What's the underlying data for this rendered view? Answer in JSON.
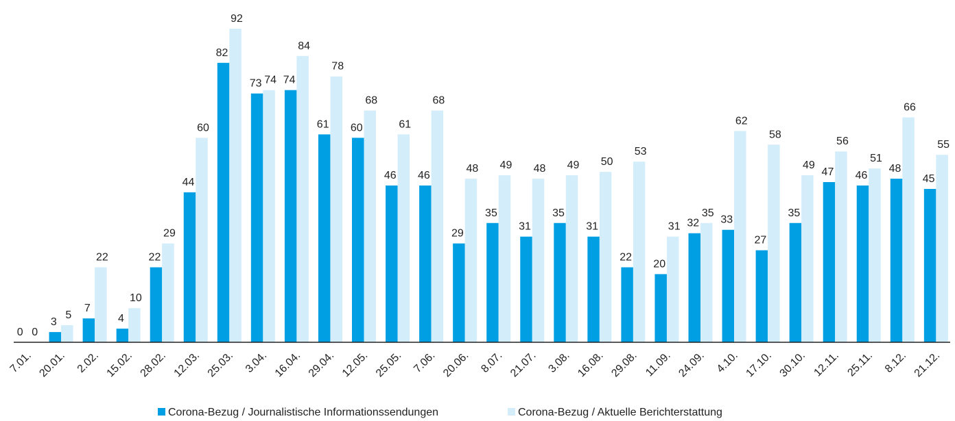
{
  "chart_data": {
    "type": "bar",
    "categories": [
      "7.01.",
      "20.01.",
      "2.02.",
      "15.02.",
      "28.02.",
      "12.03.",
      "25.03.",
      "3.04.",
      "16.04.",
      "29.04.",
      "12.05.",
      "25.05.",
      "7.06.",
      "20.06.",
      "8.07.",
      "21.07.",
      "3.08.",
      "16.08.",
      "29.08.",
      "11.09.",
      "24.09.",
      "4.10.",
      "17.10.",
      "30.10.",
      "12.11.",
      "25.11.",
      "8.12.",
      "21.12."
    ],
    "series": [
      {
        "name": "Corona-Bezug / Journalistische Informationssendungen",
        "color": "#009fe3",
        "values": [
          0,
          3,
          7,
          4,
          22,
          44,
          82,
          73,
          74,
          61,
          60,
          46,
          46,
          29,
          35,
          31,
          35,
          31,
          22,
          20,
          32,
          33,
          27,
          35,
          47,
          46,
          48,
          45
        ]
      },
      {
        "name": "Corona-Bezug / Aktuelle Berichterstattung",
        "color": "#d4edfa",
        "values": [
          0,
          5,
          22,
          10,
          29,
          60,
          92,
          74,
          84,
          78,
          68,
          61,
          68,
          48,
          49,
          48,
          49,
          50,
          53,
          31,
          35,
          62,
          58,
          49,
          56,
          51,
          66,
          55
        ]
      }
    ]
  }
}
